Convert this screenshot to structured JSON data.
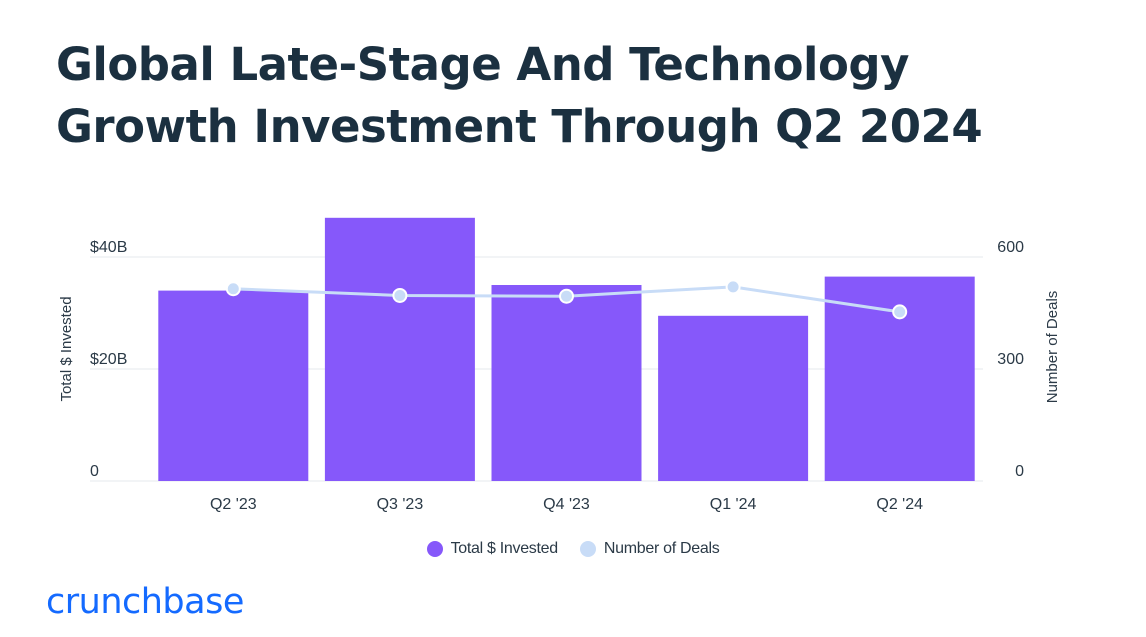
{
  "header": {
    "title_line1": "Global Late-Stage And Technology",
    "title_line2": "Growth Investment Through Q2 2024"
  },
  "brand": {
    "name": "crunchbase"
  },
  "colors": {
    "title": "#1b3040",
    "bar": "#8658fa",
    "line": "#c8dcf7",
    "grid": "#e4e8ee",
    "text": "#2b3a47",
    "brand": "#146aff"
  },
  "chart_data": {
    "type": "bar",
    "categories": [
      "Q2 '23",
      "Q3 '23",
      "Q4 '23",
      "Q1 '24",
      "Q2 '24"
    ],
    "series": [
      {
        "name": "Total $ Invested",
        "kind": "bar",
        "axis": "left",
        "values": [
          34,
          47,
          35,
          29.5,
          36.5
        ]
      },
      {
        "name": "Number of Deals",
        "kind": "line",
        "axis": "right",
        "values": [
          515,
          497,
          495,
          520,
          453
        ]
      }
    ],
    "left_axis": {
      "label": "Total $ Invested",
      "range": [
        0,
        40
      ],
      "ticks": [
        0,
        20,
        40
      ],
      "tick_labels": [
        "0",
        "$20B",
        "$40B"
      ]
    },
    "right_axis": {
      "label": "Number of Deals",
      "range": [
        0,
        600
      ],
      "ticks": [
        0,
        300,
        600
      ],
      "tick_labels": [
        "0",
        "300",
        "600"
      ]
    },
    "legend": [
      {
        "label": "Total $ Invested",
        "color": "#8658fa"
      },
      {
        "label": "Number of Deals",
        "color": "#c8dcf7"
      }
    ],
    "legend_position": "bottom-center"
  }
}
